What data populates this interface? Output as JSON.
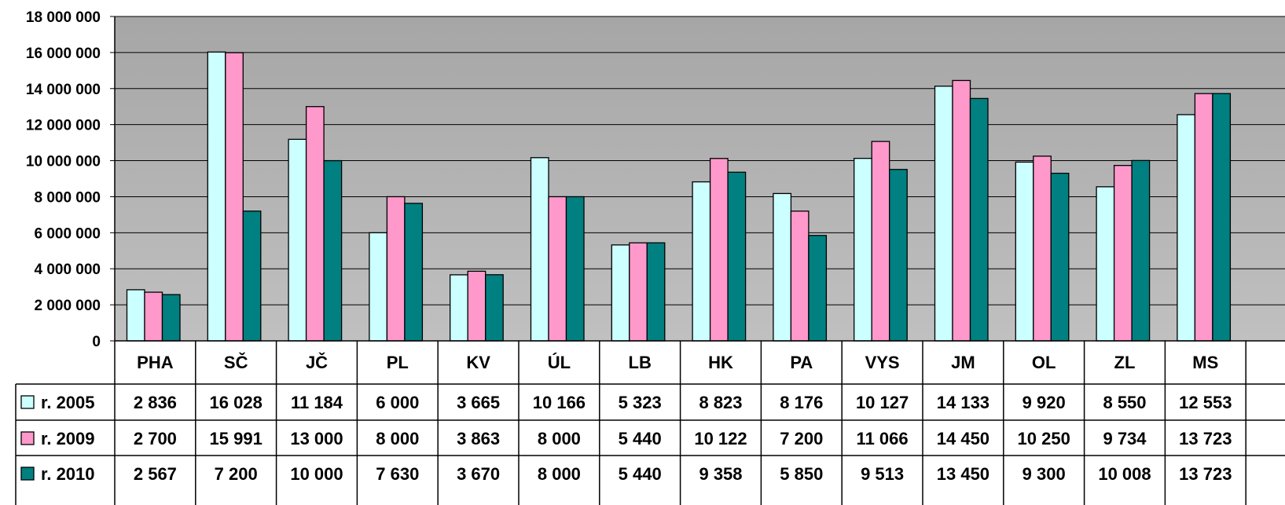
{
  "chart_data": {
    "type": "bar",
    "categories": [
      "PHA",
      "SČ",
      "JČ",
      "PL",
      "KV",
      "ÚL",
      "LB",
      "HK",
      "PA",
      "VYS",
      "JM",
      "OL",
      "ZL",
      "MS"
    ],
    "series": [
      {
        "name": "r. 2005",
        "color": "#ccffff",
        "values": [
          2836000,
          16028000,
          11184000,
          6000000,
          3665000,
          10166000,
          5323000,
          8823000,
          8176000,
          10127000,
          14133000,
          9920000,
          8550000,
          12553000
        ],
        "table_values": [
          "2 836",
          "16 028",
          "11 184",
          "6 000",
          "3 665",
          "10 166",
          "5 323",
          "8 823",
          "8 176",
          "10 127",
          "14 133",
          "9 920",
          "8 550",
          "12 553"
        ]
      },
      {
        "name": "r. 2009",
        "color": "#ff99cc",
        "values": [
          2700000,
          15991000,
          13000000,
          8000000,
          3863000,
          8000000,
          5440000,
          10122000,
          7200000,
          11066000,
          14450000,
          10250000,
          9734000,
          13723000
        ],
        "table_values": [
          "2 700",
          "15 991",
          "13 000",
          "8 000",
          "3 863",
          "8 000",
          "5 440",
          "10 122",
          "7 200",
          "11 066",
          "14 450",
          "10 250",
          "9 734",
          "13 723"
        ]
      },
      {
        "name": "r. 2010",
        "color": "#008080",
        "values": [
          2567000,
          7200000,
          10000000,
          7630000,
          3670000,
          8000000,
          5440000,
          9358000,
          5850000,
          9513000,
          13450000,
          9300000,
          10008000,
          13723000
        ],
        "table_values": [
          "2 567",
          "7 200",
          "10 000",
          "7 630",
          "3 670",
          "8 000",
          "5 440",
          "9 358",
          "5 850",
          "9 513",
          "13 450",
          "9 300",
          "10 008",
          "13 723"
        ]
      }
    ],
    "yticks": [
      "0",
      "2 000 000",
      "4 000 000",
      "6 000 000",
      "8 000 000",
      "10 000 000",
      "12 000 000",
      "14 000 000",
      "16 000 000",
      "18 000 000"
    ],
    "ylim": [
      0,
      18000000
    ],
    "grid": true,
    "legend": "data-table-left",
    "plot_background_colors": [
      "#a6a6a6",
      "#c0c0c0"
    ]
  }
}
